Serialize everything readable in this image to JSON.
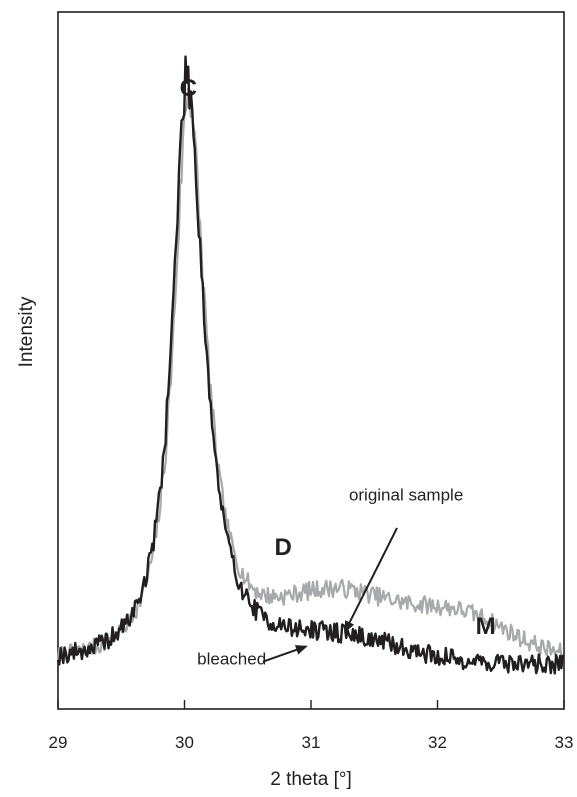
{
  "chart_data": {
    "type": "line",
    "title": "",
    "xlabel": "2 theta [°]",
    "ylabel": "Intensity",
    "xlim": [
      29,
      33
    ],
    "ylim": [
      0,
      1
    ],
    "xticks": [
      29,
      30,
      31,
      32,
      33
    ],
    "xtick_labels": [
      "29",
      "30",
      "31",
      "32",
      "33"
    ],
    "grid": false,
    "series": [
      {
        "name": "original sample",
        "color": "#a7a9ac",
        "peak_center": 30.03,
        "peak_height": 0.94,
        "baseline_start": 0.04,
        "baseline_end": 0.045,
        "tail_d": 0.105,
        "tail_m": 0.065,
        "noise": 0.015,
        "seed": 7
      },
      {
        "name": "bleached",
        "color": "#231f20",
        "peak_center": 30.02,
        "peak_height": 0.97,
        "baseline_start": 0.04,
        "baseline_end": 0.035,
        "tail_d": 0.04,
        "tail_m": 0.0,
        "noise": 0.016,
        "seed": 19
      }
    ],
    "peak_labels": [
      {
        "text": "C",
        "x": 30.03,
        "y": 1.0
      },
      {
        "text": "D",
        "x": 30.78,
        "y": 0.245
      },
      {
        "text": "M",
        "x": 32.38,
        "y": 0.115
      }
    ],
    "annotations": [
      {
        "text": "original sample",
        "x": 31.3,
        "y": 0.305,
        "arrow_from": [
          31.68,
          0.26
        ],
        "arrow_to": [
          31.27,
          0.09
        ]
      },
      {
        "text": "bleached",
        "x": 30.1,
        "y": 0.035,
        "arrow_from": [
          30.62,
          0.04
        ],
        "arrow_to": [
          30.96,
          0.065
        ]
      }
    ]
  }
}
